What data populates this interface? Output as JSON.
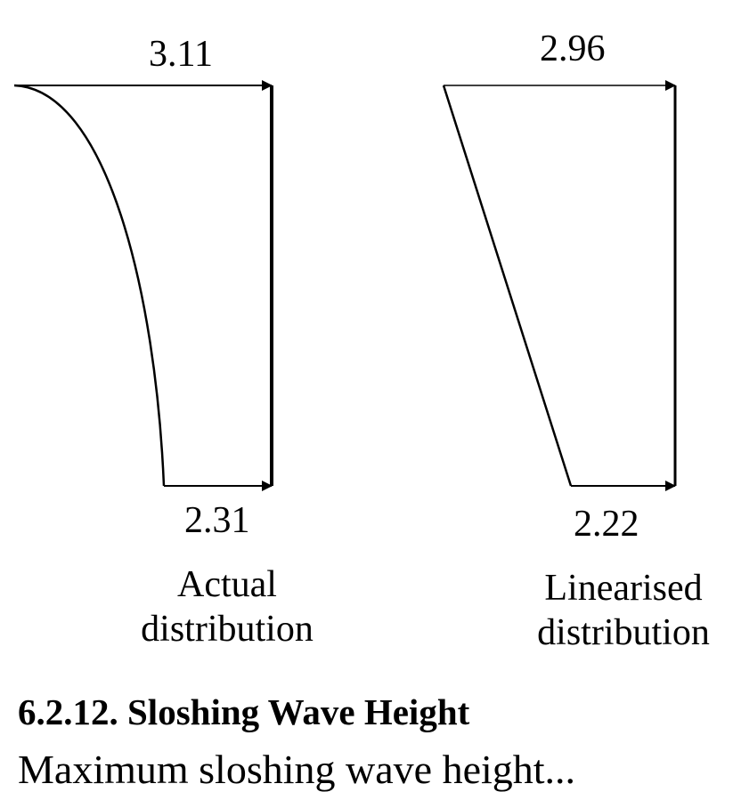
{
  "diagram": {
    "actual": {
      "top_value": "3.11",
      "bottom_value": "2.31",
      "caption_line1": "Actual",
      "caption_line2": "distribution"
    },
    "linearised": {
      "top_value": "2.96",
      "bottom_value": "2.22",
      "caption_line1": "Linearised",
      "caption_line2": "distribution"
    }
  },
  "section": {
    "heading": "6.2.12.  Sloshing Wave Height",
    "next_line_fragment": "Maximum sloshing wave height..."
  }
}
